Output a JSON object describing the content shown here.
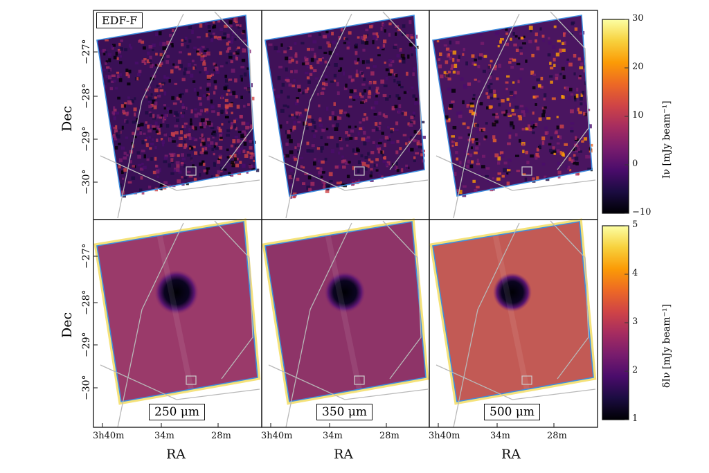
{
  "chart_data": {
    "type": "heatmap",
    "field_label": "EDF-F",
    "xlabel": "RA",
    "ylabel": "Dec",
    "x_ticks": [
      "3h40m",
      "34m",
      "28m"
    ],
    "y_ticks": [
      "−27°",
      "−28°",
      "−29°",
      "−30°"
    ],
    "columns": [
      "250 μm",
      "350 μm",
      "500 μm"
    ],
    "rows": [
      {
        "quantity": "intensity map",
        "colorbar_label": "Iν [mJy beam⁻¹]",
        "colormap": "inferno",
        "range": [
          -10,
          30
        ],
        "ticks": [
          "30",
          "20",
          "10",
          "0",
          "−10"
        ]
      },
      {
        "quantity": "noise map",
        "colorbar_label": "δIν [mJy beam⁻¹]",
        "colormap": "inferno",
        "range": [
          1,
          5
        ],
        "ticks": [
          "5",
          "4",
          "3",
          "2",
          "1"
        ]
      }
    ],
    "colors": {
      "footprint_outline": "#3d8ee0",
      "overlay_lines": "#b8b8b8"
    }
  }
}
